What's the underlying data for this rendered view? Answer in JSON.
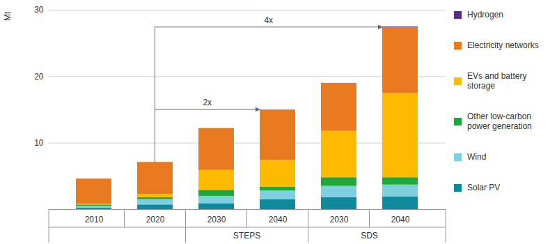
{
  "chart_data": {
    "type": "bar",
    "stacked": true,
    "grid": true,
    "legend": "right",
    "y_label": "Mt",
    "categories": [
      "2010",
      "2020",
      "2030",
      "2040",
      "2030",
      "2040"
    ],
    "category_groups": [
      null,
      null,
      "STEPS",
      "STEPS",
      "SDS",
      "SDS"
    ],
    "ylim": [
      0,
      30
    ],
    "yticks": [
      10,
      20,
      30
    ],
    "series": [
      {
        "name": "Solar PV",
        "color": "#0f8a9d",
        "values": [
          0.2,
          0.7,
          0.9,
          1.5,
          1.8,
          1.9
        ]
      },
      {
        "name": "Wind",
        "color": "#7ecfe0",
        "values": [
          0.3,
          0.8,
          1.1,
          1.3,
          1.7,
          1.8
        ]
      },
      {
        "name": "Other low-carbon power generation",
        "color": "#1ea83c",
        "values": [
          0.2,
          0.3,
          0.9,
          0.6,
          1.3,
          1.1
        ]
      },
      {
        "name": "EVs and battery storage",
        "color": "#fdbb00",
        "values": [
          0.1,
          0.5,
          3.0,
          4.0,
          7.0,
          12.7
        ]
      },
      {
        "name": "Electricity networks",
        "color": "#e8791e",
        "values": [
          3.8,
          4.8,
          6.3,
          7.6,
          7.2,
          9.9
        ]
      },
      {
        "name": "Hydrogen",
        "color": "#5b2c83",
        "values": [
          0,
          0,
          0,
          0,
          0,
          0.1
        ]
      }
    ],
    "annotations": [
      {
        "text": "2x",
        "from": 1,
        "to": 3,
        "y": 15.0
      },
      {
        "text": "4x",
        "from": 1,
        "to": 5,
        "y": 27.4
      }
    ]
  }
}
